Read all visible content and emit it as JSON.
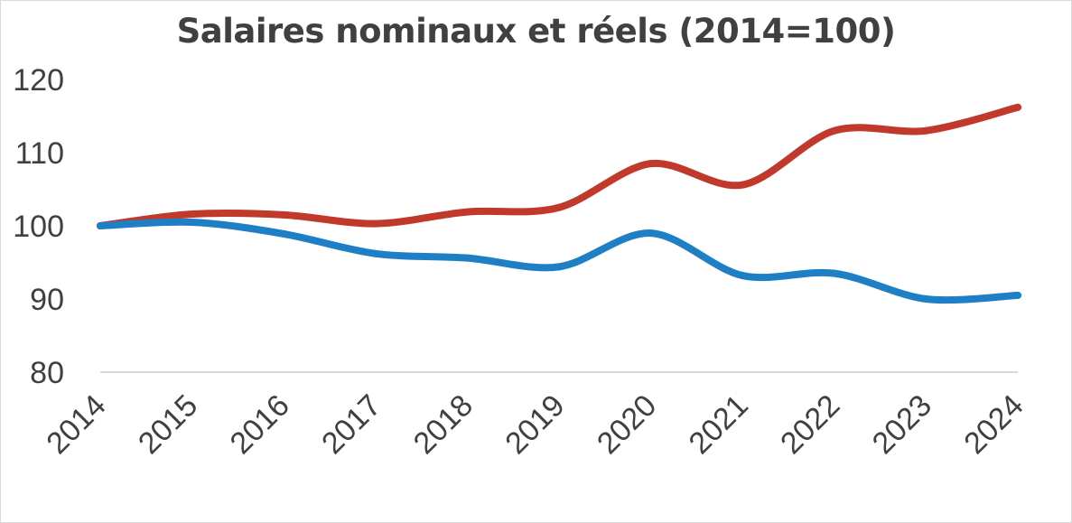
{
  "chart_data": {
    "type": "line",
    "title": "Salaires nominaux et réels (2014=100)",
    "xlabel": "",
    "ylabel": "",
    "categories": [
      "2014",
      "2015",
      "2016",
      "2017",
      "2018",
      "2019",
      "2020",
      "2021",
      "2022",
      "2023",
      "2024"
    ],
    "ylim": [
      80,
      120
    ],
    "yticks": [
      80,
      90,
      100,
      110,
      120
    ],
    "grid": false,
    "legend": "none",
    "series": [
      {
        "color": "#c0392b",
        "values": [
          100,
          101.6,
          101.5,
          100.3,
          101.9,
          102.5,
          108.5,
          105.6,
          113.0,
          113.0,
          116.2
        ]
      },
      {
        "color": "#1f7fc4",
        "values": [
          100,
          100.5,
          98.9,
          96.2,
          95.6,
          94.4,
          99.0,
          93.2,
          93.5,
          90.0,
          90.5
        ]
      }
    ]
  }
}
